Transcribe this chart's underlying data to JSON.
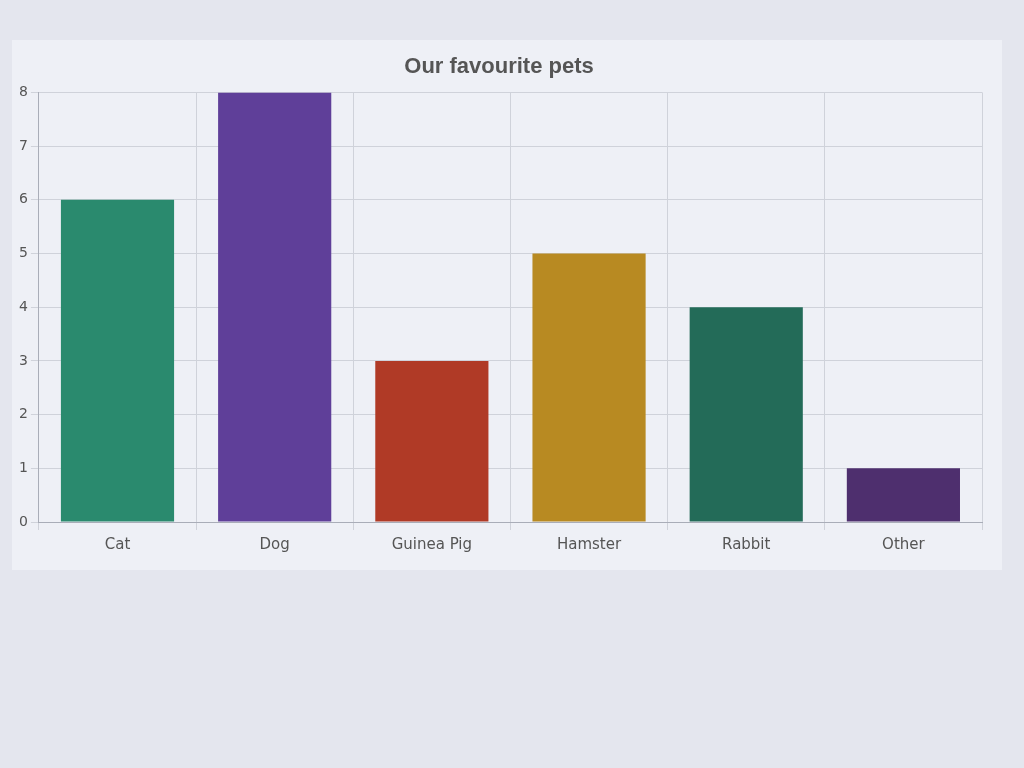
{
  "chart_data": {
    "type": "bar",
    "title": "Our favourite pets",
    "categories": [
      "Cat",
      "Dog",
      "Guinea Pig",
      "Hamster",
      "Rabbit",
      "Other"
    ],
    "values": [
      6,
      8,
      3,
      5,
      4,
      1
    ],
    "colors": [
      "#2a8a6e",
      "#5f3f99",
      "#b03a26",
      "#b88a22",
      "#236b58",
      "#4e2f6e"
    ],
    "ylim": [
      0,
      8
    ],
    "yticks": [
      0,
      1,
      2,
      3,
      4,
      5,
      6,
      7,
      8
    ],
    "grid": true
  }
}
